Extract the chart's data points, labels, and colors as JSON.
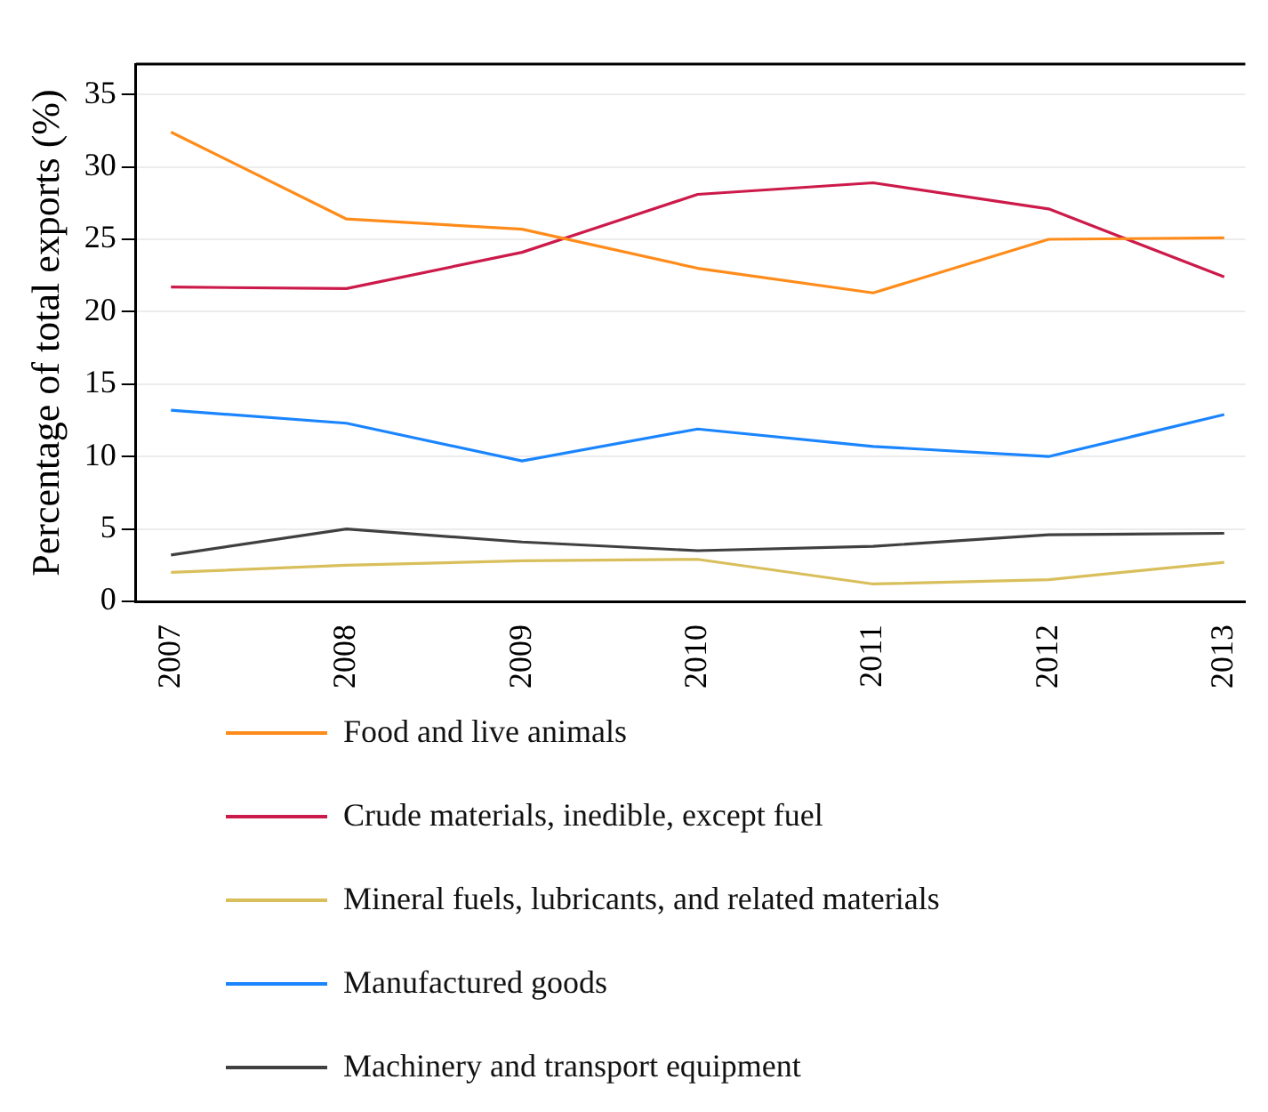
{
  "chart_data": {
    "type": "line",
    "ylabel": "Percentage of total exports (%)",
    "categories": [
      "2007",
      "2008",
      "2009",
      "2010",
      "2011",
      "2012",
      "2013"
    ],
    "series": [
      {
        "name": "Food and live animals",
        "color": "#ff8c1a",
        "values": [
          32.4,
          26.4,
          25.7,
          23.0,
          21.3,
          25.0,
          25.1
        ]
      },
      {
        "name": "Crude materials, inedible, except fuel",
        "color": "#cc1a4a",
        "values": [
          21.7,
          21.6,
          24.1,
          28.1,
          28.9,
          27.1,
          22.4
        ]
      },
      {
        "name": "Mineral fuels, lubricants, and related materials",
        "color": "#d9bf5c",
        "values": [
          2.0,
          2.5,
          2.8,
          2.9,
          1.2,
          1.5,
          2.7
        ]
      },
      {
        "name": "Manufactured goods",
        "color": "#1a85ff",
        "values": [
          13.2,
          12.3,
          9.7,
          11.9,
          10.7,
          10.0,
          12.9
        ]
      },
      {
        "name": "Machinery and transport equipment",
        "color": "#404040",
        "values": [
          3.2,
          5.0,
          4.1,
          3.5,
          3.8,
          4.6,
          4.7
        ]
      }
    ],
    "ylim": [
      0,
      37.1
    ],
    "yticks": [
      0,
      5,
      10,
      15,
      20,
      25,
      30,
      35
    ],
    "grid": "y",
    "legend": "bottom",
    "marker": "none",
    "line_style": "solid"
  }
}
